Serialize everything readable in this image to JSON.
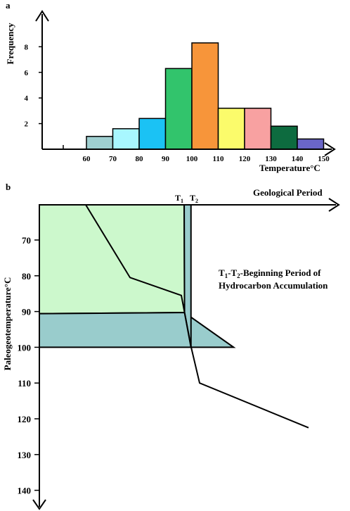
{
  "chart_data": [
    {
      "panel_label": "a",
      "type": "bar",
      "ylabel": "Frequency",
      "xlabel": "Temperature°C",
      "y_ticks": [
        "2",
        "4",
        "6",
        "8"
      ],
      "ylim": [
        0,
        10
      ],
      "x_ticks": [
        "60",
        "70",
        "80",
        "90",
        "100",
        "110",
        "120",
        "130",
        "140",
        "150"
      ],
      "bins": [
        {
          "from": 60,
          "to": 70,
          "value": 1.0,
          "color": "#9fcfd0"
        },
        {
          "from": 70,
          "to": 80,
          "value": 1.6,
          "color": "#a8f7ff"
        },
        {
          "from": 80,
          "to": 90,
          "value": 2.4,
          "color": "#1bc2f4"
        },
        {
          "from": 90,
          "to": 100,
          "value": 6.3,
          "color": "#32c46c"
        },
        {
          "from": 100,
          "to": 110,
          "value": 8.3,
          "color": "#f7953a"
        },
        {
          "from": 110,
          "to": 120,
          "value": 3.2,
          "color": "#fbfb6b"
        },
        {
          "from": 120,
          "to": 130,
          "value": 3.2,
          "color": "#f8a1a1"
        },
        {
          "from": 130,
          "to": 140,
          "value": 1.8,
          "color": "#0d6b3f"
        },
        {
          "from": 140,
          "to": 150,
          "value": 0.8,
          "color": "#6a66c8"
        }
      ]
    },
    {
      "panel_label": "b",
      "type": "line",
      "ylabel": "Paleogeotemperature°C",
      "xlabel": "Geological Period",
      "y_ticks": [
        "70",
        "80",
        "90",
        "100",
        "110",
        "120",
        "130",
        "140"
      ],
      "ylim": [
        60,
        150
      ],
      "y_reversed": true,
      "marker_labels": [
        "T1",
        "T2"
      ],
      "annotation_lines": [
        "T1-T2-Beginning Period of",
        "Hydrocarbon Accumulation"
      ],
      "series": [
        {
          "points": [
            [
              0.25,
              60
            ],
            [
              0.48,
              80.5
            ],
            [
              0.75,
              85.5
            ],
            [
              0.8,
              100
            ],
            [
              0.86,
              110
            ],
            [
              1.45,
              122.5
            ]
          ]
        }
      ],
      "fill_colors": {
        "upper": "#ccf8cc",
        "lower": "#99cccc"
      }
    }
  ]
}
